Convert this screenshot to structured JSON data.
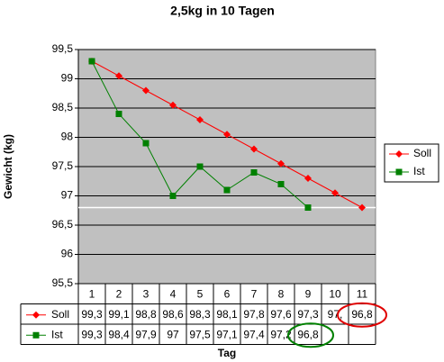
{
  "chart_data": {
    "type": "line",
    "title": "2,5kg in 10 Tagen",
    "x_label": "Tag",
    "y_label": "Gewicht (kg)",
    "categories": [
      1,
      2,
      3,
      4,
      5,
      6,
      7,
      8,
      9,
      10,
      11
    ],
    "series": [
      {
        "name": "Soll",
        "color": "#ff0000",
        "marker": "diamond",
        "values": [
          99.3,
          99.05,
          98.8,
          98.55,
          98.3,
          98.05,
          97.8,
          97.55,
          97.3,
          97.05,
          96.8
        ],
        "value_labels": [
          "99,3",
          "99,1",
          "98,8",
          "98,6",
          "98,3",
          "98,1",
          "97,8",
          "97,6",
          "97,3",
          "97,",
          "96,8"
        ]
      },
      {
        "name": "Ist",
        "color": "#008000",
        "marker": "square",
        "values": [
          99.3,
          98.4,
          97.9,
          97.0,
          97.5,
          97.1,
          97.4,
          97.2,
          96.8,
          null,
          null
        ],
        "value_labels": [
          "99,3",
          "98,4",
          "97,9",
          "97",
          "97,5",
          "97,1",
          "97,4",
          "97,2",
          "96,8",
          null,
          null
        ]
      }
    ],
    "reference_line": 96.8,
    "ylim": [
      95.5,
      99.5
    ],
    "yticks": [
      {
        "value": 95.5,
        "label": "95,5"
      },
      96,
      {
        "value": 96.5,
        "label": "96,5"
      },
      97,
      {
        "value": 97.5,
        "label": "97,5"
      },
      98,
      {
        "value": 98.5,
        "label": "98,5"
      },
      99,
      {
        "value": 99.5,
        "label": "99,5"
      }
    ],
    "grid": true,
    "legend": "right",
    "plot_background": "#c0c0c0"
  }
}
